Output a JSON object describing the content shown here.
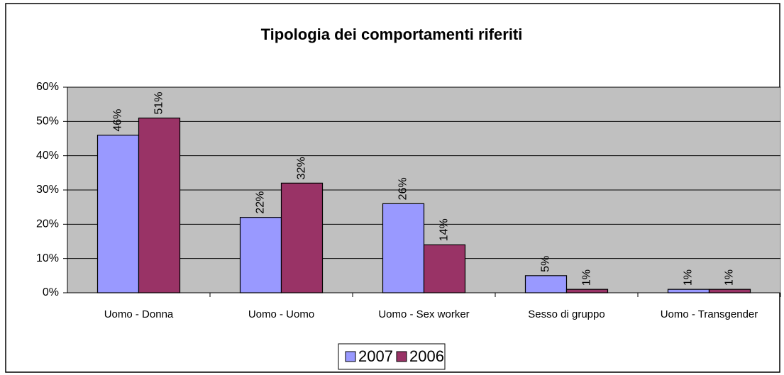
{
  "chart_data": {
    "type": "bar",
    "title": "Tipologia dei comportamenti riferiti",
    "categories": [
      "Uomo - Donna",
      "Uomo - Uomo",
      "Uomo - Sex worker",
      "Sesso di gruppo",
      "Uomo - Transgender"
    ],
    "series": [
      {
        "name": "2007",
        "color": "#9999ff",
        "values": [
          46,
          22,
          26,
          5,
          1
        ],
        "value_labels": [
          "46%",
          "22%",
          "26%",
          "5%",
          "1%"
        ]
      },
      {
        "name": "2006",
        "color": "#993366",
        "values": [
          51,
          32,
          14,
          1,
          1
        ],
        "value_labels": [
          "51%",
          "32%",
          "14%",
          "1%",
          "1%"
        ]
      }
    ],
    "ylim": [
      0,
      60
    ],
    "yticks": [
      {
        "value": 0,
        "label": "0%"
      },
      {
        "value": 10,
        "label": "10%"
      },
      {
        "value": 20,
        "label": "20%"
      },
      {
        "value": 30,
        "label": "30%"
      },
      {
        "value": 40,
        "label": "40%"
      },
      {
        "value": 50,
        "label": "50%"
      },
      {
        "value": 60,
        "label": "60%"
      }
    ],
    "grid": true,
    "legend": "bottom"
  }
}
